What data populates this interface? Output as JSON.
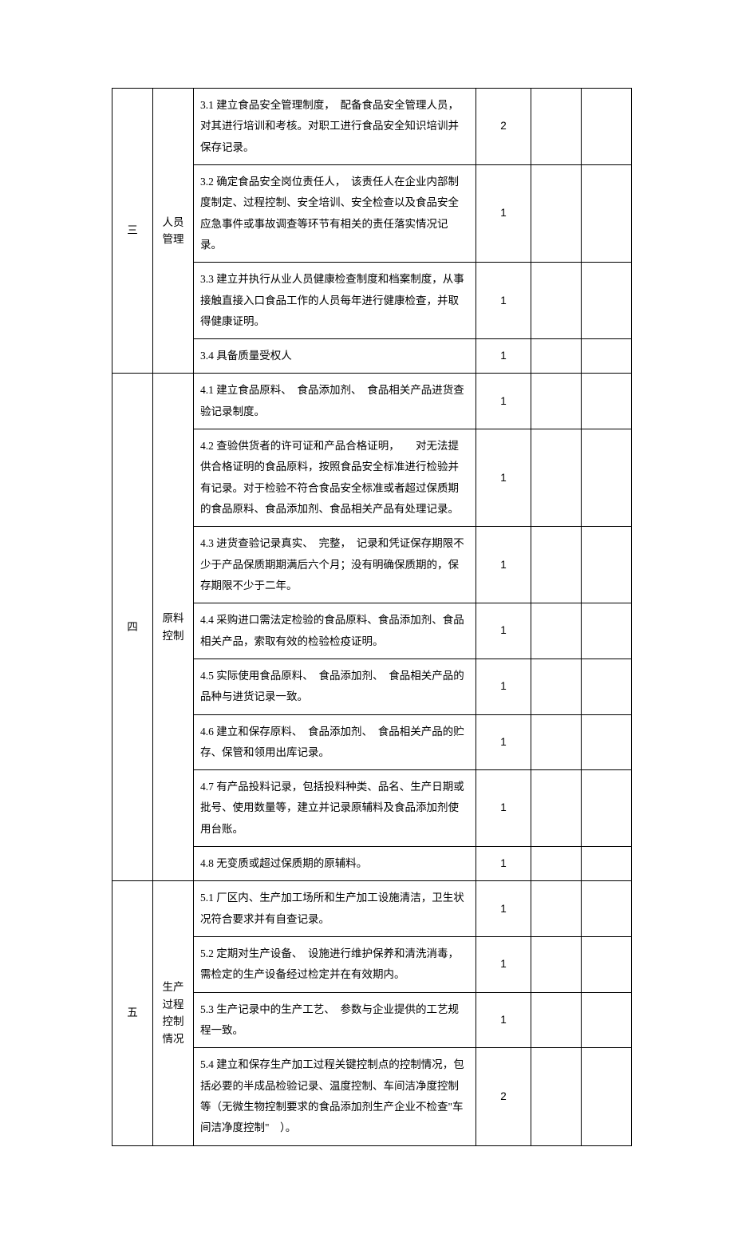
{
  "sections": {
    "s3": {
      "num": "三",
      "cat": "人员管理",
      "rows": [
        {
          "desc": "3.1 建立食品安全管理制度，　配备食品安全管理人员，对其进行培训和考核。对职工进行食品安全知识培训并保存记录。",
          "score": "2"
        },
        {
          "desc": "3.2 确定食品安全岗位责任人，　该责任人在企业内部制度制定、过程控制、安全培训、安全检查以及食品安全应急事件或事故调查等环节有相关的责任落实情况记录。",
          "score": "1"
        },
        {
          "desc": "3.3 建立并执行从业人员健康检查制度和档案制度，从事接触直接入口食品工作的人员每年进行健康检查，并取得健康证明。",
          "score": "1"
        },
        {
          "desc": "3.4 具备质量受权人",
          "score": "1"
        }
      ]
    },
    "s4": {
      "num": "四",
      "cat": "原料控制",
      "rows": [
        {
          "desc": "4.1 建立食品原料、　食品添加剂、　食品相关产品进货查验记录制度。",
          "score": "1"
        },
        {
          "desc": "4.2 查验供货者的许可证和产品合格证明，　　对无法提供合格证明的食品原料，按照食品安全标准进行检验并有记录。对于检验不符合食品安全标准或者超过保质期的食品原料、食品添加剂、食品相关产品有处理记录。",
          "score": "1"
        },
        {
          "desc": "4.3 进货查验记录真实、　完整，　记录和凭证保存期限不少于产品保质期期满后六个月；没有明确保质期的，保存期限不少于二年。",
          "score": "1"
        },
        {
          "desc": "4.4 采购进口需法定检验的食品原料、食品添加剂、食品相关产品，索取有效的检验检疫证明。",
          "score": "1"
        },
        {
          "desc": "4.5 实际使用食品原料、　食品添加剂、　食品相关产品的品种与进货记录一致。",
          "score": "1"
        },
        {
          "desc": "4.6 建立和保存原料、　食品添加剂、　食品相关产品的贮存、保管和领用出库记录。",
          "score": "1"
        },
        {
          "desc": "4.7 有产品投料记录，包括投料种类、品名、生产日期或批号、使用数量等，建立并记录原辅料及食品添加剂使用台账。",
          "score": "1"
        },
        {
          "desc": "4.8 无变质或超过保质期的原辅料。",
          "score": "1"
        }
      ]
    },
    "s5": {
      "num": "五",
      "cat": "生产过程控制情况",
      "rows": [
        {
          "desc": "5.1 厂区内、生产加工场所和生产加工设施清洁，卫生状况符合要求并有自查记录。",
          "score": "1"
        },
        {
          "desc": "5.2 定期对生产设备、　设施进行维护保养和清洗消毒，需检定的生产设备经过检定并在有效期内。",
          "score": "1"
        },
        {
          "desc": "5.3 生产记录中的生产工艺、　参数与企业提供的工艺规程一致。",
          "score": "1"
        },
        {
          "desc": "5.4 建立和保存生产加工过程关键控制点的控制情况，包括必要的半成品检验记录、温度控制、车间洁净度控制等（无微生物控制要求的食品添加剂生产企业不检查\"车间洁净度控制\"　）。",
          "score": "2"
        }
      ]
    }
  }
}
